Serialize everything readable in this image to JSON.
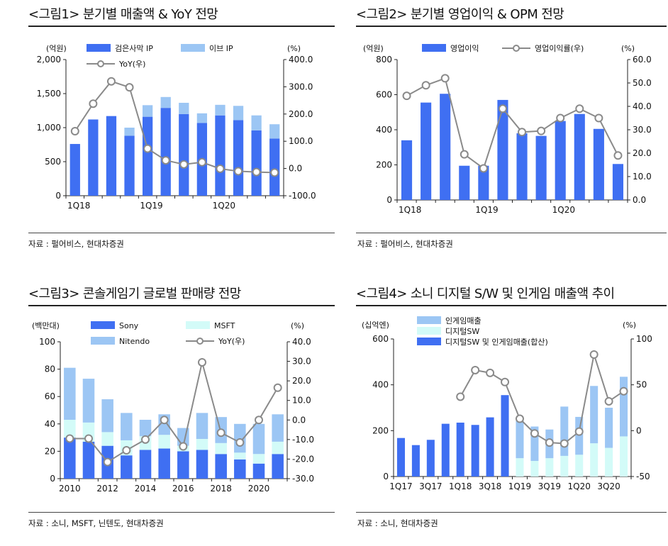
{
  "colors": {
    "blue": "#3f6ff2",
    "light_blue": "#9cc6f4",
    "mint": "#d3fbf8",
    "gray": "#8a8a8a"
  },
  "chart_data": [
    {
      "type": "bar",
      "title": "<그림1> 분기별 매출액 & YoY 전망",
      "source": "자료 : 펄어비스, 현대차증권",
      "left_unit": "(억원)",
      "right_unit": "(%)",
      "stacked": true,
      "categories": [
        "1Q18",
        "2Q18",
        "3Q18",
        "4Q18",
        "1Q19",
        "2Q19",
        "3Q19",
        "4Q19",
        "1Q20",
        "2Q20",
        "3Q20",
        "4Q20"
      ],
      "x_tick_labels": [
        "1Q18",
        "1Q19",
        "1Q20"
      ],
      "ylim": [
        0,
        2000
      ],
      "y_ticks": [
        "0",
        "500",
        "1,000",
        "1,500",
        "2,000"
      ],
      "y2lim": [
        -100,
        400
      ],
      "y2_ticks": [
        "-100.0",
        "0.0",
        "100.0",
        "200.0",
        "300.0",
        "400.0"
      ],
      "series": [
        {
          "name": "검은사막  IP",
          "kind": "bar",
          "axis": "left",
          "color": "#3f6ff2",
          "values": [
            760,
            1120,
            1170,
            880,
            1160,
            1290,
            1200,
            1070,
            1180,
            1110,
            960,
            840
          ]
        },
        {
          "name": "이브 IP",
          "kind": "bar",
          "axis": "left",
          "color": "#9cc6f4",
          "values": [
            0,
            0,
            0,
            120,
            170,
            160,
            165,
            140,
            155,
            210,
            220,
            210
          ]
        },
        {
          "name": "YoY(우)",
          "kind": "line",
          "axis": "right",
          "color": "#8a8a8a",
          "values": [
            137,
            238,
            320,
            298,
            73,
            30,
            15,
            23,
            -1,
            -10,
            -13,
            -15
          ]
        }
      ],
      "legend": [
        "검은사막  IP",
        "이브 IP",
        "YoY(우)"
      ]
    },
    {
      "type": "bar",
      "title": "<그림2> 분기별 영업이익 & OPM 전망",
      "source": "자료 : 펄어비스, 현대차증권",
      "left_unit": "(억원)",
      "right_unit": "(%)",
      "stacked": false,
      "categories": [
        "1Q18",
        "2Q18",
        "3Q18",
        "4Q18",
        "1Q19",
        "2Q19",
        "3Q19",
        "4Q19",
        "1Q20",
        "2Q20",
        "3Q20",
        "4Q20"
      ],
      "x_tick_labels": [
        "1Q18",
        "1Q19",
        "1Q20"
      ],
      "ylim": [
        0,
        800
      ],
      "y_ticks": [
        "0",
        "200",
        "400",
        "600",
        "800"
      ],
      "y2lim": [
        0,
        60
      ],
      "y2_ticks": [
        "0.0",
        "10.0",
        "20.0",
        "30.0",
        "40.0",
        "50.0",
        "60.0"
      ],
      "series": [
        {
          "name": "영업이익",
          "kind": "bar",
          "axis": "left",
          "color": "#3f6ff2",
          "values": [
            340,
            555,
            605,
            195,
            195,
            570,
            380,
            365,
            450,
            490,
            405,
            205
          ]
        },
        {
          "name": "영업이익률(우)",
          "kind": "line",
          "axis": "right",
          "color": "#8a8a8a",
          "values": [
            44.5,
            49,
            52,
            19.5,
            13.5,
            39,
            29,
            29.5,
            35,
            39,
            35,
            19
          ]
        }
      ],
      "legend": [
        "영업이익",
        "영업이익률(우)"
      ]
    },
    {
      "type": "bar",
      "title": "<그림3> 콘솔게임기 글로벌 판매량 전망",
      "source": "자료 : 소니, MSFT, 닌텐도, 현대차증권",
      "left_unit": "(백만대)",
      "right_unit": "(%)",
      "stacked": true,
      "categories": [
        "2010",
        "2011",
        "2012",
        "2013",
        "2014",
        "2015",
        "2016",
        "2017",
        "2018",
        "2019",
        "2020",
        "2021"
      ],
      "x_tick_labels": [
        "2010",
        "2012",
        "2014",
        "2016",
        "2018",
        "2020"
      ],
      "ylim": [
        0,
        100
      ],
      "y_ticks": [
        "0",
        "20",
        "40",
        "60",
        "80",
        "100"
      ],
      "y2lim": [
        -30,
        40
      ],
      "y2_ticks": [
        "-30.0",
        "-20.0",
        "-10.0",
        "0.0",
        "10.0",
        "20.0",
        "30.0",
        "40.0"
      ],
      "series": [
        {
          "name": "Sony",
          "kind": "bar",
          "axis": "left",
          "color": "#3f6ff2",
          "values": [
            30,
            27,
            24,
            17,
            21,
            22,
            20,
            21,
            18,
            14,
            11,
            18
          ]
        },
        {
          "name": "MSFT",
          "kind": "bar",
          "axis": "left",
          "color": "#d3fbf8",
          "values": [
            13,
            14,
            10,
            11,
            10,
            10,
            4,
            8,
            8,
            5,
            7,
            9
          ]
        },
        {
          "name": "Nitendo",
          "kind": "bar",
          "axis": "left",
          "color": "#9cc6f4",
          "values": [
            38,
            32,
            24,
            20,
            12,
            15,
            13,
            19,
            19,
            21,
            22,
            20
          ]
        },
        {
          "name": "YoY(우)",
          "kind": "line",
          "axis": "right",
          "color": "#8a8a8a",
          "values": [
            -9.5,
            -9.5,
            -21.5,
            -15.5,
            -10,
            0,
            -13.5,
            29.5,
            -6.5,
            -11.5,
            0,
            16.5
          ]
        }
      ],
      "legend": [
        "Sony",
        "MSFT",
        "Nitendo",
        "YoY(우)"
      ]
    },
    {
      "type": "bar",
      "title": "<그림4> 소니 디지털 S/W 및 인게임 매출액 추이",
      "source": "자료 : 소니, 현대차증권",
      "left_unit": "(십억엔)",
      "right_unit": "(%)",
      "stacked": true,
      "categories": [
        "1Q17",
        "2Q17",
        "3Q17",
        "4Q17",
        "1Q18",
        "2Q18",
        "3Q18",
        "4Q18",
        "1Q19",
        "2Q19",
        "3Q19",
        "4Q19",
        "1Q20",
        "2Q20",
        "3Q20",
        "4Q20"
      ],
      "x_tick_labels": [
        "1Q17",
        "3Q17",
        "1Q18",
        "3Q18",
        "1Q19",
        "3Q19",
        "1Q20",
        "3Q20"
      ],
      "ylim": [
        0,
        600
      ],
      "y_ticks": [
        "0",
        "200",
        "400",
        "600"
      ],
      "y2lim": [
        -50,
        100
      ],
      "y2_ticks": [
        "-50",
        "0",
        "50",
        "100"
      ],
      "series": [
        {
          "name": "디지털SW  및 인게임매출(합산)",
          "kind": "bar",
          "axis": "left",
          "color": "#3f6ff2",
          "values": [
            168,
            137,
            160,
            230,
            235,
            225,
            258,
            355,
            0,
            0,
            0,
            0,
            0,
            0,
            0,
            0
          ]
        },
        {
          "name": "디지털SW",
          "kind": "bar",
          "axis": "left",
          "color": "#d3fbf8",
          "values": [
            0,
            0,
            0,
            0,
            0,
            0,
            0,
            0,
            80,
            68,
            80,
            90,
            95,
            145,
            125,
            175
          ]
        },
        {
          "name": "인게임매출",
          "kind": "bar",
          "axis": "left",
          "color": "#9cc6f4",
          "values": [
            0,
            0,
            0,
            0,
            0,
            0,
            0,
            0,
            165,
            150,
            125,
            215,
            165,
            250,
            175,
            260
          ]
        },
        {
          "name": "YoY(우)",
          "kind": "line",
          "axis": "right",
          "color": "#8a8a8a",
          "values": [
            null,
            null,
            null,
            null,
            37,
            66,
            63,
            53,
            13,
            -3,
            -13,
            -14,
            -1,
            83,
            32,
            43
          ]
        }
      ],
      "legend": [
        "인게임매출",
        "디지털SW",
        "디지털SW  및 인게임매출(합산)"
      ]
    }
  ]
}
